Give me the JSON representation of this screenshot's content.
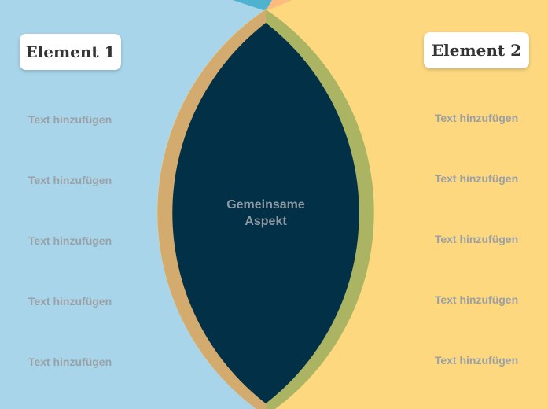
{
  "colors": {
    "left_circle": "#a8d5ea",
    "right_circle": "#fed87f",
    "left_ring": "#d3ab6f",
    "right_ring": "#abb463",
    "overlap": "#023047"
  },
  "left": {
    "title": "Element 1",
    "items": [
      "Text hinzufügen",
      "Text hinzufügen",
      "Text hinzufügen",
      "Text hinzufügen",
      "Text hinzufügen"
    ]
  },
  "right": {
    "title": "Element 2",
    "items": [
      "Text hinzufügen",
      "Text hinzufügen",
      "Text hinzufügen",
      "Text hinzufügen",
      "Text hinzufügen"
    ]
  },
  "center": {
    "line1": "Gemeinsame",
    "line2": "Aspekt"
  }
}
